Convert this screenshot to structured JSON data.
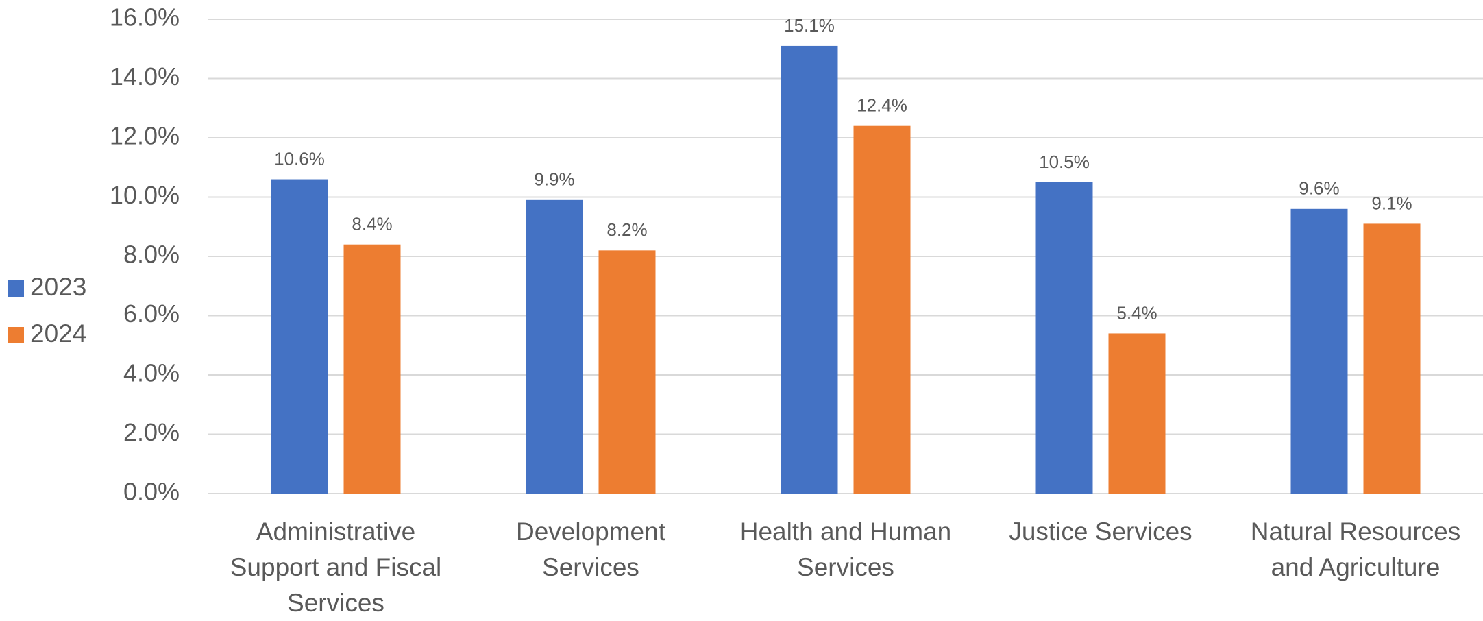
{
  "chart_data": {
    "type": "bar",
    "categories": [
      "Administrative Support and Fiscal Services",
      "Development Services",
      "Health and Human Services",
      "Justice Services",
      "Natural Resources and Agriculture"
    ],
    "series": [
      {
        "name": "2023",
        "color": "#4472c4",
        "values": [
          10.6,
          9.9,
          15.1,
          10.5,
          9.6
        ],
        "value_labels": [
          "10.6%",
          "9.9%",
          "15.1%",
          "10.5%",
          "9.6%"
        ]
      },
      {
        "name": "2024",
        "color": "#ed7d31",
        "values": [
          8.4,
          8.2,
          12.4,
          5.4,
          9.1
        ],
        "value_labels": [
          "8.4%",
          "8.2%",
          "12.4%",
          "5.4%",
          "9.1%"
        ]
      }
    ],
    "ylim": [
      0,
      16
    ],
    "yticks": [
      {
        "value": 0,
        "label": "0.0%"
      },
      {
        "value": 2,
        "label": "2.0%"
      },
      {
        "value": 4,
        "label": "4.0%"
      },
      {
        "value": 6,
        "label": "6.0%"
      },
      {
        "value": 8,
        "label": "8.0%"
      },
      {
        "value": 10,
        "label": "10.0%"
      },
      {
        "value": 12,
        "label": "12.0%"
      },
      {
        "value": 14,
        "label": "14.0%"
      },
      {
        "value": 16,
        "label": "16.0%"
      }
    ],
    "grid": true,
    "legend": "left"
  }
}
